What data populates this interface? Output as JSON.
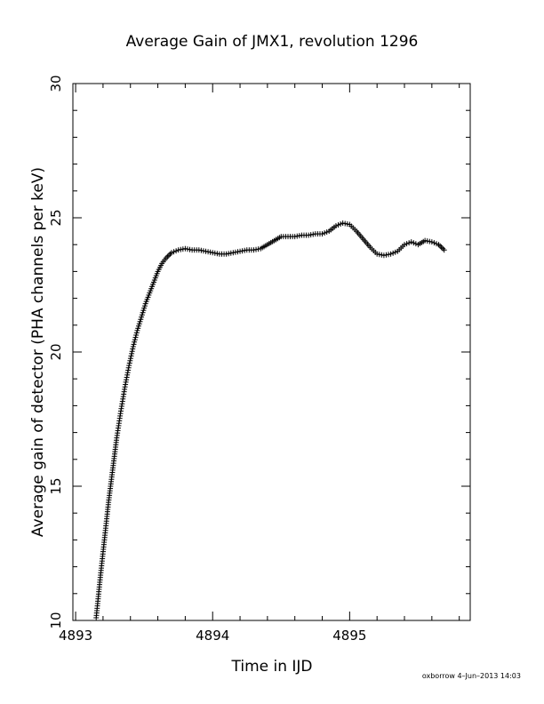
{
  "chart_data": {
    "type": "scatter",
    "title": "Average Gain of JMX1, revolution 1296",
    "xlabel": "Time in IJD",
    "ylabel": "Average gain of detector (PHA channels per keV)",
    "xlim": [
      4892.98,
      4895.88
    ],
    "ylim": [
      10,
      30
    ],
    "xticks": [
      4893,
      4894,
      4895
    ],
    "yticks": [
      10,
      15,
      20,
      25,
      30
    ],
    "marker": "plus",
    "grid": false,
    "footer": "oxborrow  4–Jun–2013 14:03",
    "series": [
      {
        "x": [
          4893.15,
          4893.18,
          4893.21,
          4893.24,
          4893.27,
          4893.3,
          4893.33,
          4893.36,
          4893.39,
          4893.42,
          4893.45,
          4893.48,
          4893.51,
          4893.54,
          4893.57,
          4893.6,
          4893.63,
          4893.66,
          4893.7,
          4893.75,
          4893.8,
          4893.85,
          4893.9,
          4893.95,
          4894.0,
          4894.05,
          4894.1,
          4894.15,
          4894.2,
          4894.25,
          4894.3,
          4894.35,
          4894.4,
          4894.45,
          4894.5,
          4894.55,
          4894.6,
          4894.65,
          4894.7,
          4894.75,
          4894.8,
          4894.85,
          4894.9,
          4894.95,
          4895.0,
          4895.05,
          4895.1,
          4895.15,
          4895.2,
          4895.25,
          4895.3,
          4895.35,
          4895.4,
          4895.45,
          4895.5,
          4895.55,
          4895.6,
          4895.65,
          4895.69
        ],
        "y": [
          10.1,
          11.6,
          13.0,
          14.4,
          15.6,
          16.8,
          17.8,
          18.7,
          19.5,
          20.2,
          20.8,
          21.3,
          21.8,
          22.2,
          22.6,
          23.0,
          23.3,
          23.5,
          23.7,
          23.8,
          23.85,
          23.8,
          23.8,
          23.75,
          23.7,
          23.65,
          23.65,
          23.7,
          23.75,
          23.8,
          23.8,
          23.85,
          24.0,
          24.15,
          24.3,
          24.3,
          24.3,
          24.35,
          24.35,
          24.4,
          24.4,
          24.5,
          24.7,
          24.8,
          24.75,
          24.5,
          24.2,
          23.9,
          23.65,
          23.6,
          23.65,
          23.75,
          24.0,
          24.1,
          24.0,
          24.15,
          24.1,
          24.0,
          23.8
        ]
      }
    ]
  }
}
